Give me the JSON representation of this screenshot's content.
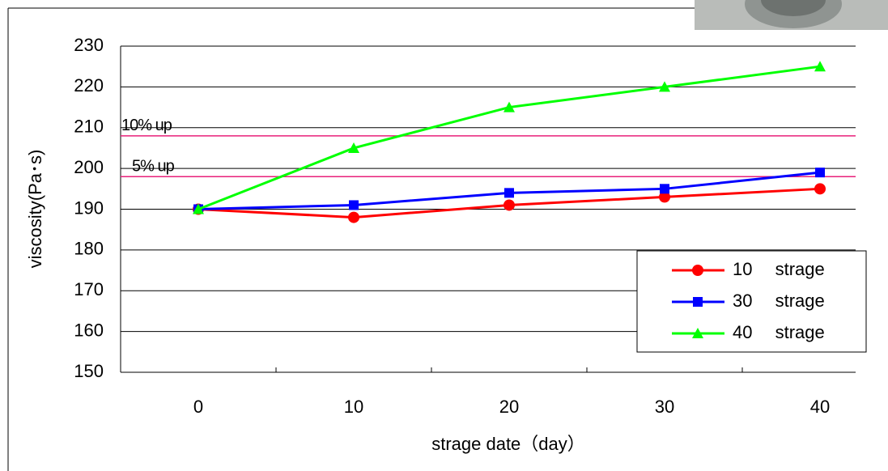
{
  "chart_data": {
    "type": "line",
    "categories": [
      "0",
      "10",
      "20",
      "30",
      "40"
    ],
    "series": [
      {
        "name": "10　 strage",
        "color": "#ff0000",
        "marker": "circle",
        "values": [
          190,
          188,
          191,
          193,
          195
        ]
      },
      {
        "name": "30　 strage",
        "color": "#0000ff",
        "marker": "square",
        "values": [
          190,
          191,
          194,
          195,
          199
        ]
      },
      {
        "name": "40　 strage",
        "color": "#00ff00",
        "marker": "triangle",
        "values": [
          190,
          205,
          215,
          220,
          225
        ]
      }
    ],
    "ylim": [
      150,
      230
    ],
    "yticks": [
      150,
      160,
      170,
      180,
      190,
      200,
      210,
      220,
      230
    ],
    "grid": true,
    "ylabel": "viscosity(Pa･s)",
    "xlabel": "strage date（day）",
    "reference_lines": [
      {
        "label": "10% up",
        "value": 208,
        "color": "#e8207a"
      },
      {
        "label": "5% up",
        "value": 198,
        "color": "#e8207a"
      }
    ],
    "legend": "lower right"
  }
}
